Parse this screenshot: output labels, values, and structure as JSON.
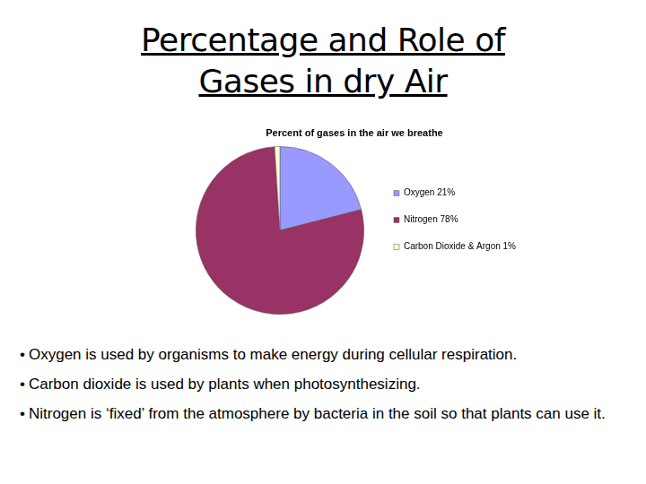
{
  "slide": {
    "title": "Percentage and Role of Gases in dry Air",
    "bullets": [
      "Oxygen is used by organisms to make energy during cellular respiration.",
      "Carbon dioxide is used by plants when photosynthesizing.",
      "Nitrogen is ‘fixed’ from the atmosphere by bacteria in the soil so that plants can use it."
    ]
  },
  "chart_data": {
    "type": "pie",
    "title": "Percent of gases in the air we breathe",
    "categories": [
      "Oxygen 21%",
      "Nitrogen 78%",
      "Carbon Dioxide & Argon 1%"
    ],
    "values": [
      21,
      78,
      1
    ],
    "colors": [
      "#9999ff",
      "#993366",
      "#ffffcc"
    ],
    "legend": "right"
  }
}
